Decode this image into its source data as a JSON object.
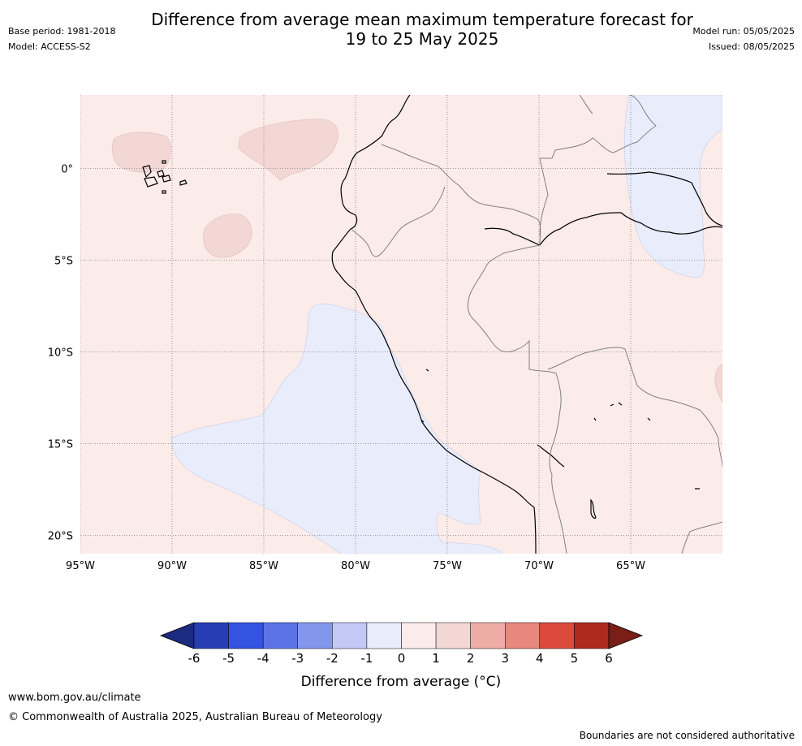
{
  "title_line1": "Difference from average mean maximum temperature forecast for",
  "title_line2": "19 to 25 May 2025",
  "meta_left": [
    "Base period: 1981-2018",
    "Model: ACCESS-S2"
  ],
  "meta_right": [
    "Model run: 05/05/2025",
    "Issued: 08/05/2025"
  ],
  "map": {
    "lon_range": [
      -95,
      -60
    ],
    "lat_range": [
      -21,
      4
    ],
    "lon_ticks": [
      "95°W",
      "90°W",
      "85°W",
      "80°W",
      "75°W",
      "70°W",
      "65°W"
    ],
    "lat_ticks": [
      "0°",
      "5°S",
      "10°S",
      "15°S",
      "20°S"
    ],
    "colors": {
      "ocean_land_base": "#fbebe9",
      "warm_1_2": "#f2d7d5",
      "cool_0_1": "#e8ecfb",
      "coast": "#000000",
      "border": "#808080",
      "grid": "#808080"
    }
  },
  "colorbar": {
    "ticks": [
      "-6",
      "-5",
      "-4",
      "-3",
      "-2",
      "-1",
      "0",
      "1",
      "2",
      "3",
      "4",
      "5",
      "6"
    ],
    "colors": [
      "#1c2a80",
      "#263db5",
      "#3353e0",
      "#5b73e6",
      "#8496ec",
      "#c3c9f5",
      "#e8ecfb",
      "#fbebe9",
      "#f2d7d5",
      "#edaca5",
      "#e7877e",
      "#dc4a3d",
      "#ad2a21",
      "#7a1e18"
    ],
    "label": "Difference from average (°C)"
  },
  "footer": {
    "url": "www.bom.gov.au/climate",
    "copyright": "© Commonwealth of Australia 2025, Australian Bureau of Meteorology",
    "disclaimer": "Boundaries are not considered authoritative"
  }
}
